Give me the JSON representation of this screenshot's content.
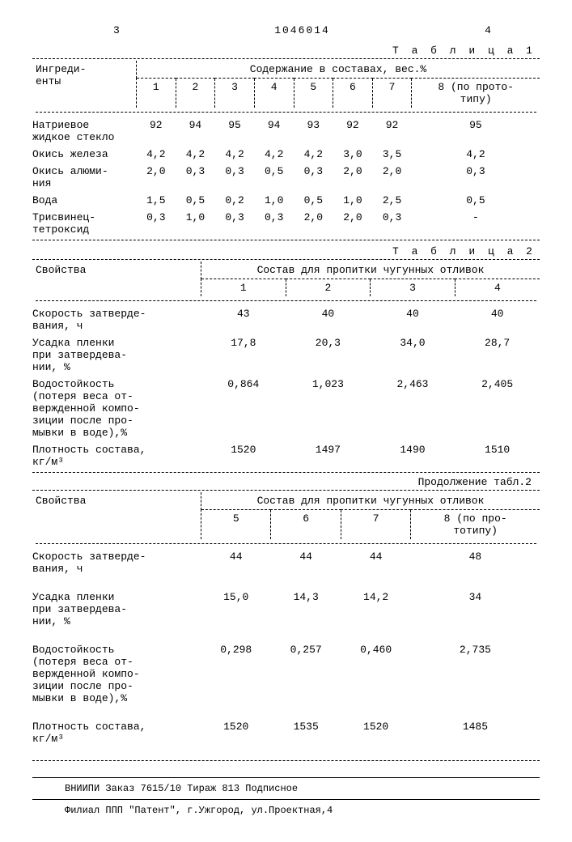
{
  "header": {
    "page_left": "3",
    "doc_number": "1046014",
    "page_right": "4"
  },
  "table1": {
    "label": "Т а б л и ц а 1",
    "col_ingredients": "Ингреди-\nенты",
    "spanning_header": "Содержание в составах, вес.%",
    "cols": [
      "1",
      "2",
      "3",
      "4",
      "5",
      "6",
      "7",
      "8 (по прото-\nтипу)"
    ],
    "rows": [
      {
        "label": "Натриевое\nжидкое стекло",
        "vals": [
          "92",
          "94",
          "95",
          "94",
          "93",
          "92",
          "92",
          "95"
        ]
      },
      {
        "label": "Окись железа",
        "vals": [
          "4,2",
          "4,2",
          "4,2",
          "4,2",
          "4,2",
          "3,0",
          "3,5",
          "4,2"
        ]
      },
      {
        "label": "Окись алюми-\nния",
        "vals": [
          "2,0",
          "0,3",
          "0,3",
          "0,5",
          "0,3",
          "2,0",
          "2,0",
          "0,3"
        ]
      },
      {
        "label": "Вода",
        "vals": [
          "1,5",
          "0,5",
          "0,2",
          "1,0",
          "0,5",
          "1,0",
          "2,5",
          "0,5"
        ]
      },
      {
        "label": "Трисвинец-\nтетроксид",
        "vals": [
          "0,3",
          "1,0",
          "0,3",
          "0,3",
          "2,0",
          "2,0",
          "0,3",
          "-"
        ]
      }
    ]
  },
  "table2": {
    "label": "Т а б л и ц а 2",
    "col_props": "Свойства",
    "spanning_header": "Состав для пропитки чугунных отливок",
    "cols_a": [
      "1",
      "2",
      "3",
      "4"
    ],
    "rows_a": [
      {
        "label": "Скорость затверде-\nвания, ч",
        "vals": [
          "43",
          "40",
          "40",
          "40"
        ]
      },
      {
        "label": "Усадка пленки\nпри затвердева-\nнии,   %",
        "vals": [
          "17,8",
          "20,3",
          "34,0",
          "28,7"
        ]
      },
      {
        "label": "Водостойкость\n(потеря веса от-\nвержденной компо-\nзиции после про-\nмывки в воде),%",
        "vals": [
          "0,864",
          "1,023",
          "2,463",
          "2,405"
        ]
      },
      {
        "label": "Плотность состава,\nкг/м³",
        "vals": [
          "1520",
          "1497",
          "1490",
          "1510"
        ]
      }
    ],
    "continuation": "Продолжение табл.2",
    "cols_b": [
      "5",
      "6",
      "7",
      "8 (по про-\nтотипу)"
    ],
    "rows_b": [
      {
        "label": "Скорость затверде-\nвания, ч",
        "vals": [
          "44",
          "44",
          "44",
          "48"
        ]
      },
      {
        "label": "Усадка пленки\nпри затвердева-\nнии,   %",
        "vals": [
          "15,0",
          "14,3",
          "14,2",
          "34"
        ]
      },
      {
        "label": "Водостойкость\n(потеря веса от-\nвержденной компо-\nзиции после про-\nмывки в воде),%",
        "vals": [
          "0,298",
          "0,257",
          "0,460",
          "2,735"
        ]
      },
      {
        "label": "Плотность состава,\nкг/м³",
        "vals": [
          "1520",
          "1535",
          "1520",
          "1485"
        ]
      }
    ]
  },
  "footer": {
    "line1": "ВНИИПИ  Заказ 7615/10  Тираж 813  Подписное",
    "line2": "Филиал ППП \"Патент\", г.Ужгород, ул.Проектная,4"
  }
}
